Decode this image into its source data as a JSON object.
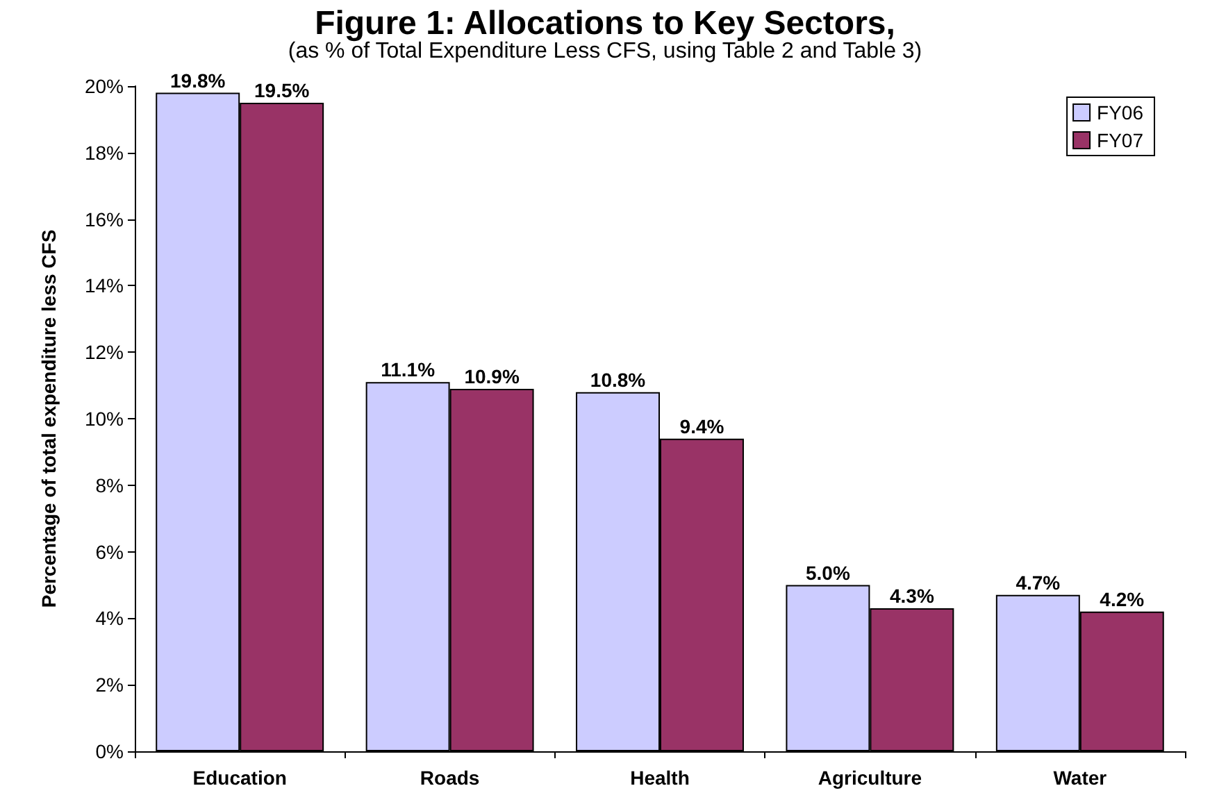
{
  "chart_data": {
    "type": "bar",
    "title": "Figure 1: Allocations to Key Sectors,",
    "subtitle": "(as % of Total Expenditure Less CFS, using Table 2 and Table 3)",
    "ylabel": "Percentage of total expenditure less CFS",
    "categories": [
      "Education",
      "Roads",
      "Health",
      "Agriculture",
      "Water"
    ],
    "series": [
      {
        "name": "FY06",
        "color": "#ccccff",
        "values": [
          19.8,
          11.1,
          10.8,
          5.0,
          4.7
        ],
        "value_labels": [
          "19.8%",
          "11.1%",
          "10.8%",
          "5.0%",
          "4.7%"
        ]
      },
      {
        "name": "FY07",
        "color": "#993366",
        "values": [
          19.5,
          10.9,
          9.4,
          4.3,
          4.2
        ],
        "value_labels": [
          "19.5%",
          "10.9%",
          "9.4%",
          "4.3%",
          "4.2%"
        ]
      }
    ],
    "ylim": [
      0,
      20
    ],
    "yticks": [
      {
        "value": 0,
        "label": "0%"
      },
      {
        "value": 2,
        "label": "2%"
      },
      {
        "value": 4,
        "label": "4%"
      },
      {
        "value": 6,
        "label": "6%"
      },
      {
        "value": 8,
        "label": "8%"
      },
      {
        "value": 10,
        "label": "10%"
      },
      {
        "value": 12,
        "label": "12%"
      },
      {
        "value": 14,
        "label": "14%"
      },
      {
        "value": 16,
        "label": "16%"
      },
      {
        "value": 18,
        "label": "18%"
      },
      {
        "value": 20,
        "label": "20%"
      }
    ],
    "grid": false,
    "legend": "top right"
  }
}
